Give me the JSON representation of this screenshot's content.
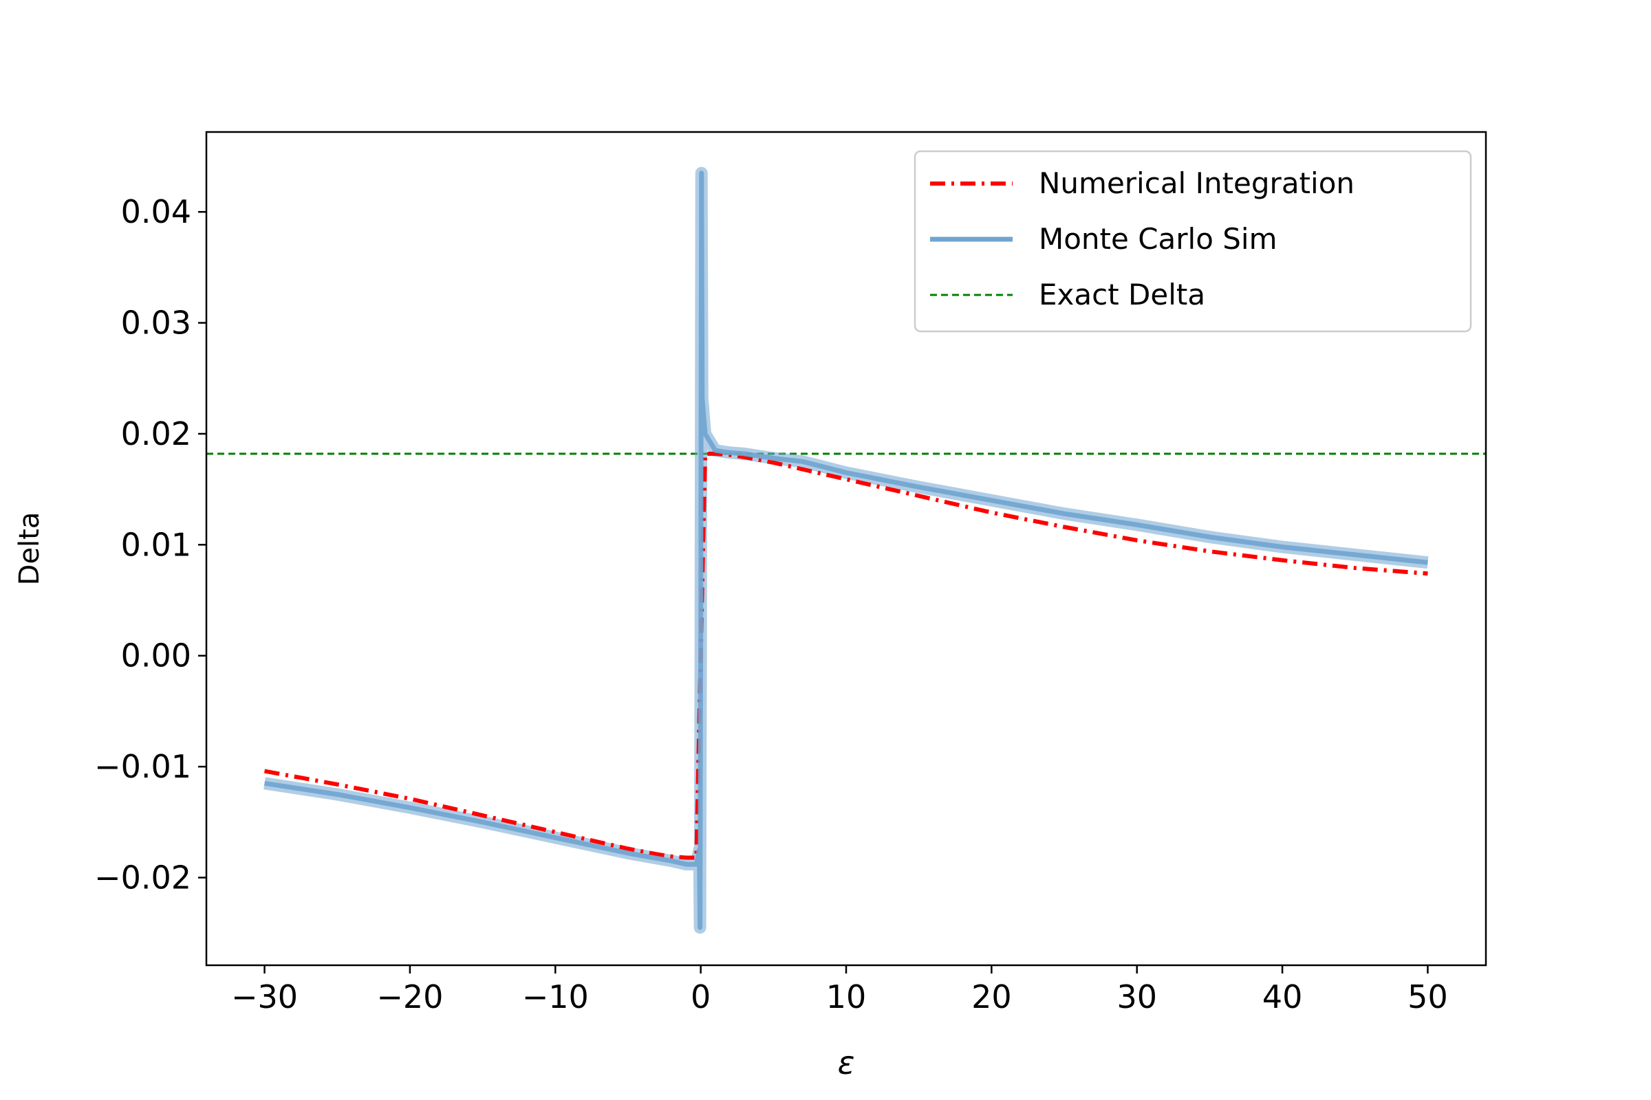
{
  "chart_data": {
    "type": "line",
    "title": "",
    "xlabel": "ε",
    "ylabel": "Delta",
    "xlim": [
      -34,
      54
    ],
    "ylim": [
      -0.0279,
      0.0472
    ],
    "xticks": [
      -30,
      -20,
      -10,
      0,
      10,
      20,
      30,
      40,
      50
    ],
    "xtick_labels": [
      "−30",
      "−20",
      "−10",
      "0",
      "10",
      "20",
      "30",
      "40",
      "50"
    ],
    "yticks": [
      -0.02,
      -0.01,
      0.0,
      0.01,
      0.02,
      0.03,
      0.04
    ],
    "ytick_labels": [
      "−0.02",
      "−0.01",
      "0.00",
      "0.01",
      "0.02",
      "0.03",
      "0.04"
    ],
    "grid": false,
    "legend_position": "top-right",
    "series": [
      {
        "name": "Numerical Integration",
        "color": "#ff0000",
        "style": "dash-dot",
        "x": [
          -30,
          -25,
          -20,
          -15,
          -10,
          -7,
          -5,
          -3,
          -2,
          -1,
          -0.3,
          0,
          0.3,
          1,
          2,
          3,
          5,
          7,
          10,
          15,
          20,
          25,
          30,
          35,
          40,
          45,
          50
        ],
        "y": [
          -0.0104,
          -0.0116,
          -0.0129,
          -0.0144,
          -0.0159,
          -0.0168,
          -0.0174,
          -0.0179,
          -0.0181,
          -0.0182,
          -0.0182,
          0.0,
          0.0182,
          0.0182,
          0.0181,
          0.0179,
          0.0174,
          0.0168,
          0.0159,
          0.0144,
          0.0129,
          0.0116,
          0.0104,
          0.0094,
          0.0086,
          0.0079,
          0.0074
        ]
      },
      {
        "name": "Monte Carlo Sim",
        "color": "#6fa4cf",
        "style": "solid",
        "x": [
          -30,
          -25,
          -20,
          -15,
          -10,
          -5,
          -2,
          -1,
          -0.3,
          -0.1,
          -0.05,
          0,
          0.05,
          0.1,
          0.3,
          1,
          2,
          3,
          5,
          7,
          10,
          15,
          20,
          25,
          30,
          35,
          40,
          45,
          50
        ],
        "y": [
          -0.0115,
          -0.0125,
          -0.0137,
          -0.015,
          -0.0164,
          -0.0178,
          -0.0185,
          -0.0188,
          -0.0188,
          -0.0175,
          -0.0245,
          0.0,
          0.0435,
          0.0232,
          0.02,
          0.0185,
          0.0183,
          0.0182,
          0.0178,
          0.0175,
          0.0165,
          0.0152,
          0.014,
          0.0128,
          0.0118,
          0.0107,
          0.0098,
          0.0091,
          0.0084
        ]
      },
      {
        "name": "Exact Delta",
        "color": "#008000",
        "style": "dashed",
        "y_constant": 0.0182
      }
    ]
  }
}
